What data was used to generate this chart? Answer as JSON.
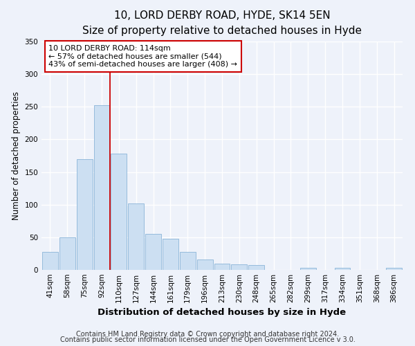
{
  "title": "10, LORD DERBY ROAD, HYDE, SK14 5EN",
  "subtitle": "Size of property relative to detached houses in Hyde",
  "xlabel": "Distribution of detached houses by size in Hyde",
  "ylabel": "Number of detached properties",
  "categories": [
    "41sqm",
    "58sqm",
    "75sqm",
    "92sqm",
    "110sqm",
    "127sqm",
    "144sqm",
    "161sqm",
    "179sqm",
    "196sqm",
    "213sqm",
    "230sqm",
    "248sqm",
    "265sqm",
    "282sqm",
    "299sqm",
    "317sqm",
    "334sqm",
    "351sqm",
    "368sqm",
    "386sqm"
  ],
  "values": [
    28,
    50,
    170,
    252,
    178,
    102,
    55,
    48,
    28,
    16,
    10,
    9,
    7,
    0,
    0,
    3,
    0,
    3,
    0,
    0,
    3
  ],
  "bar_color": "#ccdff2",
  "bar_edge_color": "#8ab4d8",
  "ylim": [
    0,
    350
  ],
  "yticks": [
    0,
    50,
    100,
    150,
    200,
    250,
    300,
    350
  ],
  "property_label": "10 LORD DERBY ROAD: 114sqm",
  "annotation_line1": "← 57% of detached houses are smaller (544)",
  "annotation_line2": "43% of semi-detached houses are larger (408) →",
  "vline_x_index": 4,
  "vline_color": "#cc0000",
  "box_color": "#cc0000",
  "footer1": "Contains HM Land Registry data © Crown copyright and database right 2024.",
  "footer2": "Contains public sector information licensed under the Open Government Licence v 3.0.",
  "background_color": "#eef2fa",
  "bar_width": 0.92,
  "title_fontsize": 11,
  "subtitle_fontsize": 9.5,
  "xlabel_fontsize": 9.5,
  "ylabel_fontsize": 8.5,
  "tick_fontsize": 7.5,
  "annotation_fontsize": 8,
  "footer_fontsize": 7
}
